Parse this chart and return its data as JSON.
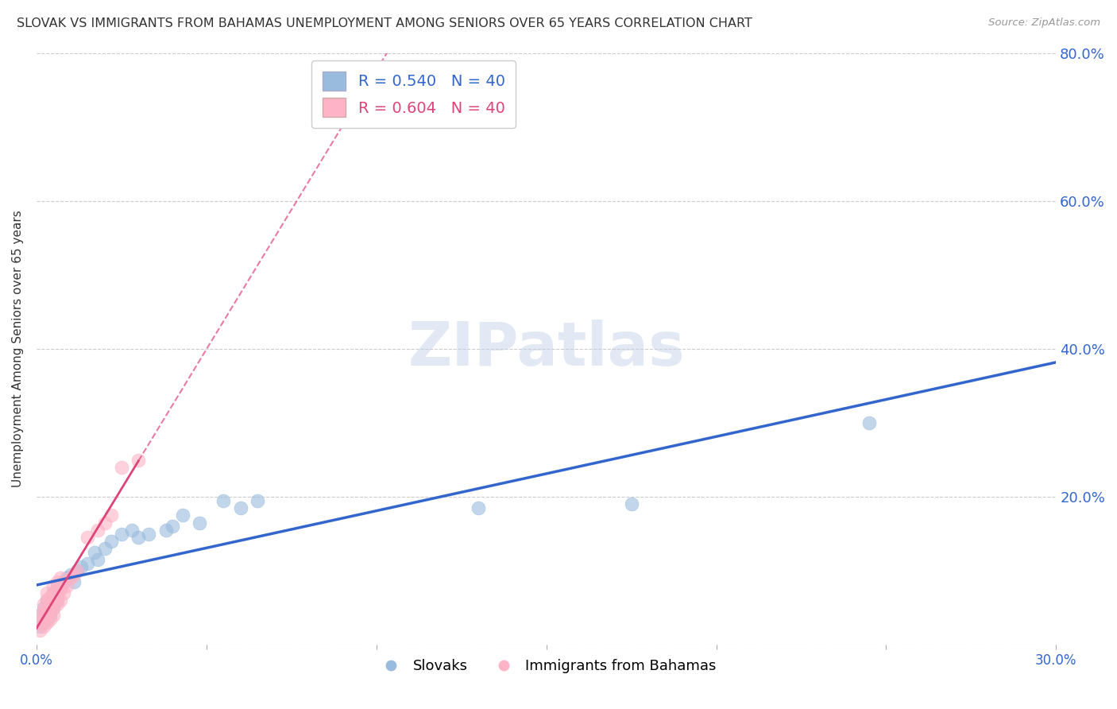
{
  "title": "SLOVAK VS IMMIGRANTS FROM BAHAMAS UNEMPLOYMENT AMONG SENIORS OVER 65 YEARS CORRELATION CHART",
  "source": "Source: ZipAtlas.com",
  "ylabel": "Unemployment Among Seniors over 65 years",
  "watermark": "ZIPatlas",
  "legend_blue_R": "R = 0.540",
  "legend_blue_N": "N = 40",
  "legend_pink_R": "R = 0.604",
  "legend_pink_N": "N = 40",
  "legend_label_blue": "Slovaks",
  "legend_label_pink": "Immigrants from Bahamas",
  "xlim": [
    0.0,
    0.3
  ],
  "ylim": [
    0.0,
    0.8
  ],
  "yticks": [
    0.0,
    0.2,
    0.4,
    0.6,
    0.8
  ],
  "ytick_labels": [
    "",
    "20.0%",
    "40.0%",
    "60.0%",
    "80.0%"
  ],
  "blue_color": "#99BBDD",
  "pink_color": "#FFB3C6",
  "blue_line_color": "#3366CC",
  "pink_line_color": "#DD4477",
  "blue_scatter_x": [
    0.001,
    0.001,
    0.002,
    0.002,
    0.003,
    0.003,
    0.003,
    0.004,
    0.004,
    0.005,
    0.005,
    0.005,
    0.006,
    0.006,
    0.007,
    0.008,
    0.009,
    0.01,
    0.011,
    0.012,
    0.013,
    0.015,
    0.017,
    0.018,
    0.02,
    0.022,
    0.025,
    0.028,
    0.03,
    0.033,
    0.038,
    0.04,
    0.043,
    0.048,
    0.055,
    0.06,
    0.065,
    0.13,
    0.175,
    0.245
  ],
  "blue_scatter_y": [
    0.025,
    0.04,
    0.03,
    0.05,
    0.035,
    0.045,
    0.06,
    0.055,
    0.04,
    0.06,
    0.05,
    0.07,
    0.06,
    0.08,
    0.075,
    0.085,
    0.09,
    0.095,
    0.085,
    0.1,
    0.105,
    0.11,
    0.125,
    0.115,
    0.13,
    0.14,
    0.15,
    0.155,
    0.145,
    0.15,
    0.155,
    0.16,
    0.175,
    0.165,
    0.195,
    0.185,
    0.195,
    0.185,
    0.19,
    0.3
  ],
  "pink_scatter_x": [
    0.001,
    0.001,
    0.001,
    0.002,
    0.002,
    0.002,
    0.002,
    0.003,
    0.003,
    0.003,
    0.003,
    0.003,
    0.004,
    0.004,
    0.004,
    0.004,
    0.005,
    0.005,
    0.005,
    0.005,
    0.005,
    0.006,
    0.006,
    0.006,
    0.006,
    0.007,
    0.007,
    0.007,
    0.008,
    0.008,
    0.009,
    0.01,
    0.011,
    0.012,
    0.015,
    0.018,
    0.02,
    0.022,
    0.025,
    0.03
  ],
  "pink_scatter_y": [
    0.02,
    0.03,
    0.04,
    0.025,
    0.035,
    0.045,
    0.055,
    0.03,
    0.04,
    0.05,
    0.06,
    0.07,
    0.035,
    0.045,
    0.055,
    0.065,
    0.04,
    0.05,
    0.06,
    0.07,
    0.08,
    0.055,
    0.065,
    0.075,
    0.085,
    0.06,
    0.075,
    0.09,
    0.07,
    0.085,
    0.08,
    0.09,
    0.095,
    0.1,
    0.145,
    0.155,
    0.165,
    0.175,
    0.24,
    0.25
  ],
  "background_color": "#ffffff",
  "grid_color": "#cccccc"
}
